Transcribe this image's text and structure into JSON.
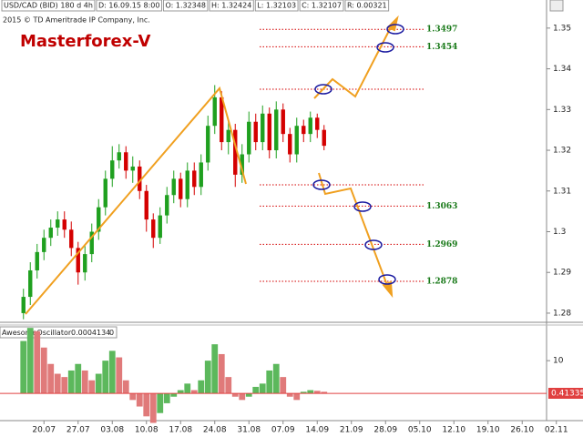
{
  "chart_data": [
    {
      "type": "candlestick",
      "title": "Masterforex-V",
      "subtitle": "2015 © TD Ameritrade IP Company, Inc.",
      "info": [
        "USD/CAD (BID) 180 d 4h",
        "D: 16.09.15 8:00",
        "O: 1.32348",
        "H: 1.32424",
        "L: 1.32103",
        "C: 1.32107",
        "R: 0.00321"
      ],
      "categories": [
        null,
        null,
        null,
        "20.07",
        null,
        null,
        null,
        null,
        "27.07",
        null,
        null,
        null,
        null,
        "03.08",
        null,
        null,
        null,
        null,
        "10.08",
        null,
        null,
        null,
        null,
        "17.08",
        null,
        null,
        null,
        null,
        "24.08",
        null,
        null,
        null,
        null,
        "31.08",
        null,
        null,
        null,
        null,
        "07.09",
        null,
        null,
        null,
        null,
        "14.09",
        null,
        null,
        null,
        null,
        "21.09",
        null,
        null,
        null,
        null,
        "28.09",
        null,
        null,
        null,
        null,
        "05.10",
        null,
        null,
        null,
        null,
        "12.10",
        null,
        null,
        null,
        null,
        "19.10",
        null,
        null,
        null,
        null,
        "26.10",
        null,
        null,
        null,
        null,
        "02.11"
      ],
      "open": [
        1.28,
        1.284,
        1.2905,
        1.295,
        1.2985,
        1.301,
        1.303,
        1.3005,
        1.296,
        1.29,
        1.2945,
        1.3,
        1.306,
        1.313,
        1.3175,
        1.3195,
        1.315,
        1.316,
        1.31,
        1.303,
        1.2985,
        1.304,
        1.309,
        1.313,
        1.308,
        1.315,
        1.311,
        1.317,
        1.326,
        1.333,
        1.322,
        1.325,
        1.314,
        1.319,
        1.327,
        1.322,
        1.329,
        1.32,
        1.33,
        1.324,
        1.319,
        1.326,
        1.324,
        1.328,
        1.325,
        null,
        null,
        null,
        null,
        null,
        null,
        null,
        null,
        null,
        null,
        null,
        null,
        null,
        null,
        null,
        null,
        null,
        null,
        null,
        null,
        null,
        null,
        null,
        null,
        null,
        null,
        null,
        null,
        null,
        null,
        null,
        null,
        null,
        null
      ],
      "high": [
        1.286,
        1.2925,
        1.297,
        1.3005,
        1.303,
        1.305,
        1.305,
        1.3025,
        1.2975,
        1.2965,
        1.302,
        1.308,
        1.315,
        1.321,
        1.3215,
        1.321,
        1.3185,
        1.3175,
        1.3115,
        1.3045,
        1.306,
        1.311,
        1.315,
        1.3145,
        1.317,
        1.317,
        1.319,
        1.3285,
        1.336,
        1.3345,
        1.3275,
        1.3265,
        1.3215,
        1.3295,
        1.329,
        1.331,
        1.3305,
        1.332,
        1.3315,
        1.3255,
        1.328,
        1.3275,
        1.3295,
        1.329,
        1.3262,
        null,
        null,
        null,
        null,
        null,
        null,
        null,
        null,
        null,
        null,
        null,
        null,
        null,
        null,
        null,
        null,
        null,
        null,
        null,
        null,
        null,
        null,
        null,
        null,
        null,
        null,
        null,
        null,
        null,
        null,
        null,
        null,
        null,
        null
      ],
      "low": [
        1.2785,
        1.282,
        1.2885,
        1.293,
        1.2965,
        1.299,
        1.2985,
        1.294,
        1.287,
        1.288,
        1.2925,
        1.298,
        1.304,
        1.311,
        1.3155,
        1.313,
        1.312,
        1.308,
        1.3,
        1.296,
        1.297,
        1.302,
        1.307,
        1.306,
        1.306,
        1.309,
        1.309,
        1.315,
        1.324,
        1.32,
        1.319,
        1.311,
        1.312,
        1.317,
        1.32,
        1.32,
        1.318,
        1.318,
        1.322,
        1.317,
        1.317,
        1.322,
        1.322,
        1.323,
        1.32,
        null,
        null,
        null,
        null,
        null,
        null,
        null,
        null,
        null,
        null,
        null,
        null,
        null,
        null,
        null,
        null,
        null,
        null,
        null,
        null,
        null,
        null,
        null,
        null,
        null,
        null,
        null,
        null,
        null,
        null,
        null,
        null,
        null,
        null
      ],
      "close": [
        1.284,
        1.2905,
        1.295,
        1.2985,
        1.301,
        1.303,
        1.3005,
        1.296,
        1.29,
        1.2945,
        1.3,
        1.306,
        1.313,
        1.3175,
        1.3195,
        1.315,
        1.316,
        1.31,
        1.303,
        1.2985,
        1.304,
        1.309,
        1.313,
        1.308,
        1.315,
        1.311,
        1.317,
        1.326,
        1.333,
        1.322,
        1.325,
        1.314,
        1.319,
        1.327,
        1.322,
        1.329,
        1.32,
        1.33,
        1.324,
        1.319,
        1.326,
        1.324,
        1.328,
        1.325,
        1.3211,
        null,
        null,
        null,
        null,
        null,
        null,
        null,
        null,
        null,
        null,
        null,
        null,
        null,
        null,
        null,
        null,
        null,
        null,
        null,
        null,
        null,
        null,
        null,
        null,
        null,
        null,
        null,
        null,
        null,
        null,
        null,
        null,
        null,
        null
      ],
      "up_color": "#1fa01f",
      "down_color": "#d40000",
      "ylim": [
        1.2782,
        1.3569
      ],
      "yticks": [
        1.28,
        1.29,
        1.3,
        1.31,
        1.32,
        1.33,
        1.34,
        1.35
      ],
      "levels": [
        1.3497,
        1.3454,
        1.335,
        1.3115,
        1.3063,
        1.2969,
        1.2878
      ],
      "level_color": "#d40000"
    },
    {
      "type": "histogram-oscillator",
      "title": "AwesomeOscillator",
      "info": [
        "0.0004134",
        "0"
      ],
      "last_label": "0.41335",
      "values": [
        16,
        20,
        19,
        14,
        9,
        6,
        5,
        7,
        9,
        7,
        4,
        6,
        10,
        13,
        11,
        4,
        -2,
        -4,
        -7,
        -9,
        -6,
        -3,
        -1,
        1,
        3,
        1,
        4,
        10,
        15,
        12,
        5,
        -1,
        -2,
        -1,
        2,
        3,
        7,
        9,
        5,
        -1,
        -2,
        0.5,
        1,
        0.8,
        0.5,
        null,
        null,
        null,
        null,
        null,
        null,
        null,
        null,
        null,
        null,
        null,
        null,
        null,
        null,
        null,
        null,
        null,
        null,
        null,
        null,
        null,
        null,
        null,
        null,
        null,
        null,
        null,
        null,
        null,
        null,
        null,
        null,
        null,
        null
      ],
      "up_color": "#5cb85c",
      "down_color": "#e07a7a",
      "ylim": [
        -8.3,
        20.6
      ],
      "yticks": [
        10
      ]
    }
  ]
}
